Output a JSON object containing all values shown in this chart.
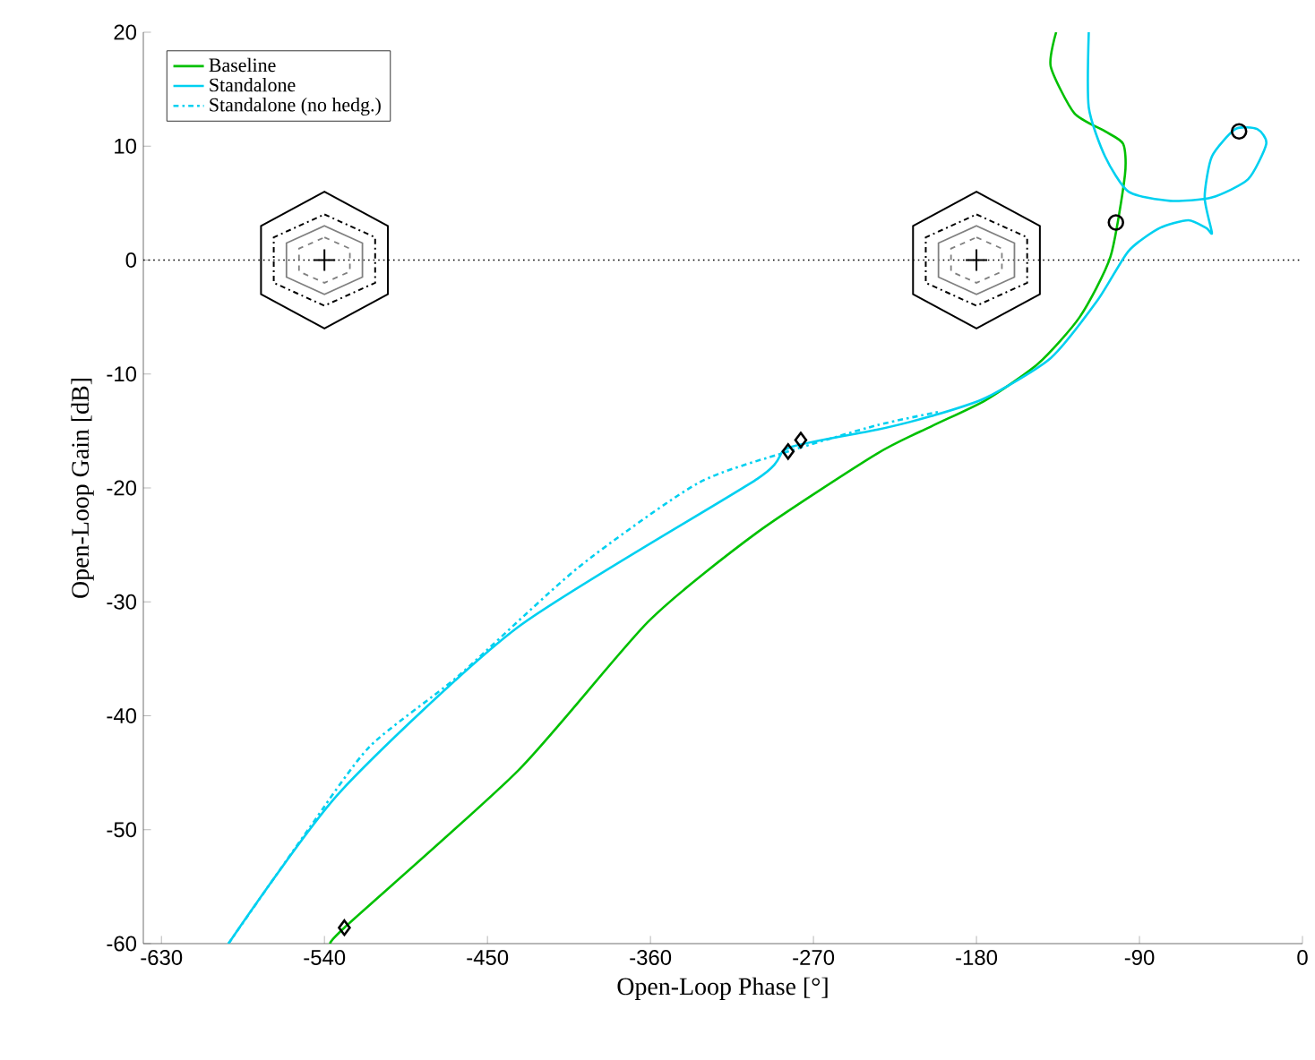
{
  "chart_data": {
    "type": "line",
    "xlabel": "Open-Loop Phase [°]",
    "ylabel": "Open-Loop Gain [dB]",
    "xlim": [
      -640,
      0
    ],
    "ylim": [
      -60,
      20
    ],
    "xticks": [
      -630,
      -540,
      -450,
      -360,
      -270,
      -180,
      -90,
      0
    ],
    "yticks": [
      -60,
      -50,
      -40,
      -30,
      -20,
      -10,
      0,
      10,
      20
    ],
    "grid": false,
    "legend": "top left",
    "ref_lines": [
      {
        "axis": "y",
        "value": 0,
        "color": "#000000",
        "line_style": "dotted"
      }
    ],
    "series": [
      {
        "name": "Baseline",
        "color": "#00c000",
        "line_style": "solid",
        "x": [
          -536,
          -529,
          -433,
          -361,
          -301,
          -235,
          -205,
          -175,
          -146,
          -123,
          -106,
          -98,
          -99,
          -109,
          -126,
          -139,
          -136
        ],
        "values": [
          -60,
          -58.6,
          -44.8,
          -31.7,
          -23.9,
          -17,
          -14.6,
          -12.3,
          -9.1,
          -5,
          0.3,
          7.5,
          10.2,
          11.3,
          12.9,
          17,
          20
        ]
      },
      {
        "name": "Standalone",
        "color": "#00d0f0",
        "line_style": "solid",
        "x": [
          -593,
          -532,
          -433,
          -301,
          -284,
          -235,
          -205,
          -175,
          -139,
          -113,
          -96,
          -79,
          -63,
          -53,
          -50,
          -54,
          -50,
          -37,
          -25,
          -20,
          -30,
          -50,
          -73,
          -96,
          -109,
          -118,
          -118
        ],
        "values": [
          -60,
          -46.8,
          -32.2,
          -19.2,
          -16.5,
          -14.9,
          -13.7,
          -12.1,
          -8.6,
          -3.5,
          0.8,
          2.8,
          3.5,
          2.8,
          2.4,
          5.5,
          9.1,
          11.5,
          11.5,
          10.2,
          7.1,
          5.5,
          5.2,
          6,
          9.1,
          13.4,
          20
        ]
      },
      {
        "name": "Standalone (no hedg.)",
        "color": "#00d0f0",
        "line_style": "dashdot",
        "x": [
          -593,
          -549,
          -515,
          -466,
          -400,
          -334,
          -284,
          -235,
          -200
        ],
        "values": [
          -60,
          -50,
          -42.7,
          -36.5,
          -27,
          -19.6,
          -16.8,
          -14.5,
          -13.3
        ]
      },
      {
        "type": "scatter",
        "color": "#000000",
        "marker": "circle",
        "x": [
          -103,
          -35
        ],
        "values": [
          3.3,
          11.3
        ]
      },
      {
        "type": "scatter",
        "color": "#000000",
        "marker": "diamond",
        "x": [
          -529,
          -284,
          -277
        ],
        "values": [
          -58.6,
          -16.8,
          -15.8
        ]
      }
    ]
  }
}
